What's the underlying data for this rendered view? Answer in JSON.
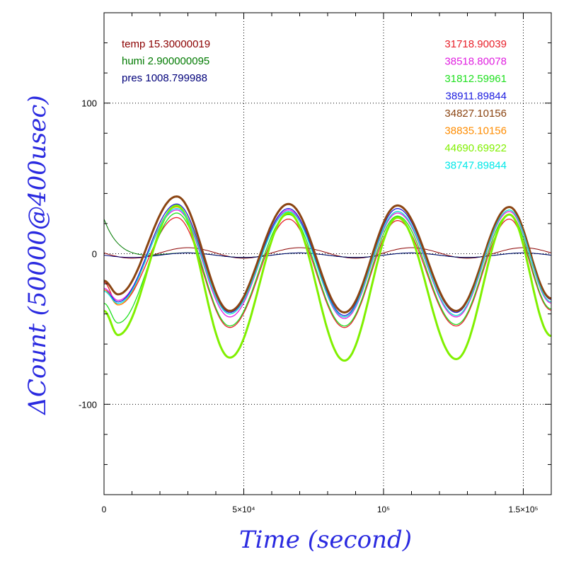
{
  "chart_data": {
    "type": "line",
    "xlabel": "Time (second)",
    "ylabel": "ΔCount (50000@400usec)",
    "xlim": [
      0,
      160000
    ],
    "ylim": [
      -160,
      160
    ],
    "grid": "dotted at major ticks",
    "x_tick_labels": [
      {
        "value": 0,
        "label": "0"
      },
      {
        "value": 50000,
        "label": "5×10⁴"
      },
      {
        "value": 100000,
        "label": "10⁵"
      },
      {
        "value": 150000,
        "label": "1.5×10⁵"
      }
    ],
    "y_tick_labels": [
      {
        "value": 100,
        "label": "100"
      },
      {
        "value": 0,
        "label": "0"
      },
      {
        "value": -100,
        "label": "-100"
      }
    ],
    "left_legend": [
      {
        "name": "temp",
        "value": "15.30000019",
        "color": "#8b0000"
      },
      {
        "name": "humi",
        "value": "2.900000095",
        "color": "#007a00"
      },
      {
        "name": "pres",
        "value": "1008.799988",
        "color": "#00007a"
      }
    ],
    "series": [
      {
        "value": "31718.90039",
        "color": "#e8202a",
        "min": [
          -34,
          -49,
          -49,
          -48
        ],
        "max": [
          24,
          23,
          22,
          23
        ],
        "start": -19
      },
      {
        "value": "38518.80078",
        "color": "#e020e0",
        "min": [
          -31,
          -42,
          -43,
          -42
        ],
        "max": [
          29,
          29,
          27,
          28
        ],
        "start": -23
      },
      {
        "value": "31812.59961",
        "color": "#20e020",
        "min": [
          -46,
          -48,
          -48,
          -47
        ],
        "max": [
          27,
          26,
          25,
          26
        ],
        "start": -33
      },
      {
        "value": "38911.89844",
        "color": "#2020e0",
        "min": [
          -32,
          -39,
          -41,
          -39
        ],
        "max": [
          33,
          30,
          30,
          31
        ],
        "start": -24
      },
      {
        "value": "34827.10156",
        "color": "#8b4513",
        "min": [
          -27,
          -38,
          -39,
          -38
        ],
        "max": [
          38,
          33,
          32,
          31
        ],
        "start": -18
      },
      {
        "value": "38835.10156",
        "color": "#ff8c00",
        "min": [
          -34,
          -40,
          -42,
          -41
        ],
        "max": [
          31,
          28,
          28,
          29
        ],
        "start": -24
      },
      {
        "value": "44690.69922",
        "color": "#80f000",
        "min": [
          -54,
          -69,
          -71,
          -70
        ],
        "max": [
          32,
          27,
          24,
          26
        ],
        "start": -38
      },
      {
        "value": "38747.89844",
        "color": "#00e8e8",
        "min": [
          -33,
          -40,
          -42,
          -41
        ],
        "max": [
          30,
          28,
          28,
          29
        ],
        "start": -25
      }
    ],
    "environment_lines": [
      {
        "name": "temp",
        "color": "#8b0000",
        "amplitude": 3.5,
        "offset": 0.5
      },
      {
        "name": "humi",
        "color": "#007a00",
        "start": 23,
        "amplitude": 1.5,
        "offset": -1
      },
      {
        "name": "pres",
        "color": "#00007a",
        "amplitude": 1.5,
        "offset": -1
      }
    ]
  }
}
